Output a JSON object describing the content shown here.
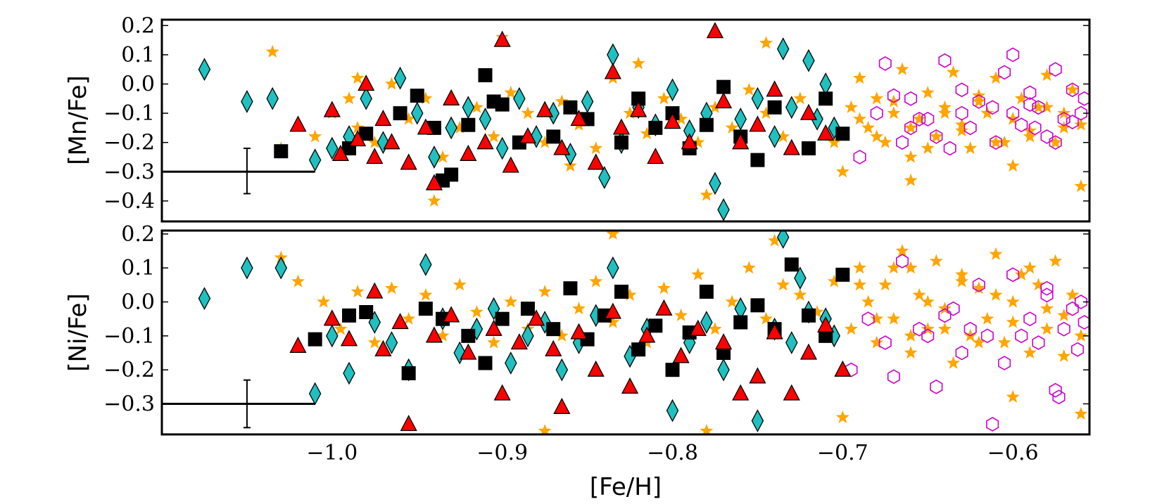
{
  "chart_data": [
    {
      "type": "scatter",
      "panel": "top",
      "title": "",
      "xlabel": "",
      "ylabel": "[Mn/Fe]",
      "xlim": [
        -1.1,
        -0.555
      ],
      "ylim": [
        -0.47,
        0.22
      ],
      "yticks": [
        0.2,
        0.1,
        0.0,
        -0.1,
        -0.2,
        -0.3,
        -0.4
      ],
      "ytick_labels": [
        "0.2",
        "0.1",
        "0.0",
        "−0.1",
        "−0.2",
        "−0.3",
        "−0.4"
      ],
      "error_bar": {
        "x": -1.05,
        "y": -0.3,
        "x_range": [
          -1.1,
          -1.01
        ],
        "y_range": [
          -0.375,
          -0.22
        ]
      },
      "series": [
        {
          "name": "orange-stars",
          "marker": "star",
          "color": "#FFA500",
          "x": [
            -1.03,
            -1.01,
            -1.0,
            -0.99,
            -0.985,
            -0.975,
            -0.965,
            -0.955,
            -0.945,
            -0.935,
            -0.925,
            -0.915,
            -0.905,
            -0.895,
            -0.885,
            -0.875,
            -0.865,
            -0.855,
            -0.845,
            -0.835,
            -0.825,
            -0.815,
            -0.805,
            -0.795,
            -0.785,
            -0.775,
            -0.765,
            -0.755,
            -0.745,
            -0.735,
            -0.725,
            -0.715,
            -0.705,
            -0.695,
            -0.69,
            -0.685,
            -0.68,
            -0.675,
            -0.67,
            -0.665,
            -0.66,
            -0.655,
            -0.65,
            -0.645,
            -0.64,
            -0.635,
            -0.63,
            -0.625,
            -0.62,
            -0.615,
            -0.61,
            -0.605,
            -0.6,
            -0.595,
            -0.59,
            -0.585,
            -0.58,
            -0.575,
            -0.57,
            -0.565,
            -0.56,
            -0.69,
            -0.68,
            -0.67,
            -0.66,
            -0.65,
            -0.64,
            -0.63,
            -0.62,
            -0.61,
            -0.6,
            -0.59,
            -0.58,
            -0.57,
            -1.035,
            -0.985,
            -0.94,
            -0.9,
            -0.86,
            -0.82,
            -0.78,
            -0.745,
            -0.7,
            -0.66,
            -0.6,
            -0.56
          ],
          "y": [
            -0.22,
            -0.18,
            -0.1,
            -0.05,
            -0.15,
            -0.2,
            0.0,
            -0.12,
            -0.05,
            -0.25,
            -0.15,
            -0.08,
            -0.18,
            -0.03,
            -0.1,
            -0.2,
            -0.06,
            -0.14,
            -0.22,
            0.02,
            -0.1,
            -0.17,
            -0.05,
            -0.12,
            -0.2,
            -0.08,
            -0.15,
            -0.02,
            -0.1,
            -0.18,
            -0.05,
            -0.12,
            -0.2,
            -0.08,
            0.02,
            -0.15,
            -0.05,
            -0.2,
            -0.1,
            0.05,
            -0.25,
            -0.12,
            -0.03,
            -0.18,
            -0.08,
            0.04,
            -0.14,
            -0.22,
            -0.06,
            -0.1,
            0.02,
            -0.2,
            -0.12,
            -0.05,
            -0.16,
            -0.08,
            0.03,
            -0.2,
            -0.1,
            -0.02,
            -0.14,
            -0.12,
            -0.18,
            -0.06,
            -0.15,
            -0.22,
            -0.1,
            -0.16,
            -0.04,
            -0.2,
            -0.12,
            -0.18,
            -0.08,
            -0.15,
            0.11,
            0.02,
            -0.4,
            0.16,
            -0.28,
            0.07,
            -0.38,
            0.14,
            -0.3,
            -0.33,
            -0.28,
            -0.35
          ]
        },
        {
          "name": "magenta-hexagons",
          "marker": "hexagon-open",
          "color": "#CC00CC",
          "x": [
            -0.69,
            -0.68,
            -0.675,
            -0.665,
            -0.66,
            -0.65,
            -0.645,
            -0.64,
            -0.63,
            -0.625,
            -0.62,
            -0.61,
            -0.605,
            -0.6,
            -0.595,
            -0.59,
            -0.585,
            -0.58,
            -0.575,
            -0.57,
            -0.565,
            -0.56,
            -0.558,
            -0.587,
            -0.612,
            -0.637,
            -0.655,
            -0.67,
            -0.63,
            -0.6,
            -0.575,
            -0.66,
            -0.59,
            -0.565
          ],
          "y": [
            -0.25,
            -0.1,
            0.07,
            -0.2,
            -0.05,
            -0.12,
            -0.18,
            0.08,
            -0.02,
            -0.15,
            -0.06,
            -0.2,
            0.04,
            -0.1,
            -0.14,
            -0.03,
            -0.08,
            -0.18,
            0.05,
            -0.12,
            -0.02,
            -0.1,
            -0.05,
            -0.15,
            -0.08,
            -0.22,
            -0.12,
            -0.04,
            -0.1,
            0.1,
            -0.2,
            -0.15,
            -0.07,
            -0.13
          ]
        },
        {
          "name": "cyan-diamonds",
          "marker": "diamond",
          "color": "#20C0C0",
          "x": [
            -1.075,
            -1.05,
            -1.035,
            -1.01,
            -1.0,
            -0.99,
            -0.98,
            -0.97,
            -0.96,
            -0.95,
            -0.94,
            -0.93,
            -0.92,
            -0.91,
            -0.9,
            -0.89,
            -0.88,
            -0.87,
            -0.86,
            -0.85,
            -0.84,
            -0.835,
            -0.83,
            -0.82,
            -0.81,
            -0.8,
            -0.79,
            -0.78,
            -0.775,
            -0.77,
            -0.76,
            -0.75,
            -0.74,
            -0.735,
            -0.73,
            -0.72,
            -0.715,
            -0.71,
            -0.705
          ],
          "y": [
            0.05,
            -0.06,
            -0.05,
            -0.26,
            -0.22,
            -0.18,
            -0.05,
            -0.2,
            0.02,
            -0.1,
            -0.25,
            -0.15,
            -0.08,
            -0.12,
            -0.22,
            -0.05,
            -0.18,
            -0.1,
            -0.24,
            -0.06,
            -0.32,
            0.1,
            -0.2,
            -0.08,
            -0.14,
            -0.02,
            -0.16,
            -0.1,
            -0.34,
            -0.43,
            -0.12,
            -0.05,
            -0.18,
            0.12,
            -0.08,
            0.08,
            -0.12,
            0.0,
            -0.15
          ]
        },
        {
          "name": "black-squares",
          "marker": "square",
          "color": "#000000",
          "x": [
            -1.03,
            -0.99,
            -0.98,
            -0.96,
            -0.95,
            -0.94,
            -0.935,
            -0.93,
            -0.92,
            -0.91,
            -0.905,
            -0.9,
            -0.89,
            -0.87,
            -0.86,
            -0.85,
            -0.83,
            -0.82,
            -0.81,
            -0.8,
            -0.79,
            -0.78,
            -0.77,
            -0.76,
            -0.75,
            -0.74,
            -0.72,
            -0.71,
            -0.7
          ],
          "y": [
            -0.23,
            -0.22,
            -0.17,
            -0.1,
            -0.04,
            -0.15,
            -0.33,
            -0.31,
            -0.14,
            0.03,
            -0.06,
            -0.07,
            -0.2,
            -0.18,
            -0.08,
            -0.12,
            -0.2,
            -0.05,
            -0.15,
            -0.1,
            -0.22,
            -0.14,
            -0.01,
            -0.18,
            -0.26,
            -0.08,
            -0.22,
            -0.05,
            -0.17
          ]
        },
        {
          "name": "red-triangles",
          "marker": "triangle",
          "color": "#FF0000",
          "x": [
            -1.02,
            -1.0,
            -0.995,
            -0.985,
            -0.98,
            -0.975,
            -0.97,
            -0.965,
            -0.955,
            -0.945,
            -0.94,
            -0.93,
            -0.92,
            -0.91,
            -0.9,
            -0.895,
            -0.885,
            -0.875,
            -0.865,
            -0.855,
            -0.845,
            -0.835,
            -0.83,
            -0.82,
            -0.81,
            -0.8,
            -0.79,
            -0.775,
            -0.77,
            -0.76,
            -0.75,
            -0.74,
            -0.73,
            -0.72,
            -0.71
          ],
          "y": [
            -0.14,
            -0.09,
            -0.24,
            -0.19,
            0.0,
            -0.25,
            -0.12,
            -0.2,
            -0.27,
            -0.15,
            -0.34,
            -0.05,
            -0.24,
            -0.2,
            0.15,
            -0.28,
            -0.18,
            -0.09,
            -0.22,
            -0.12,
            -0.27,
            0.04,
            -0.15,
            -0.09,
            -0.25,
            -0.13,
            -0.2,
            0.18,
            -0.06,
            -0.2,
            -0.14,
            -0.02,
            -0.22,
            -0.1,
            -0.17
          ]
        }
      ]
    },
    {
      "type": "scatter",
      "panel": "bottom",
      "title": "",
      "xlabel": "[Fe/H]",
      "ylabel": "[Ni/Fe]",
      "xlim": [
        -1.1,
        -0.555
      ],
      "ylim": [
        -0.39,
        0.21
      ],
      "xticks": [
        -1.0,
        -0.9,
        -0.8,
        -0.7,
        -0.6
      ],
      "xtick_labels": [
        "−1.0",
        "−0.9",
        "−0.8",
        "−0.7",
        "−0.6"
      ],
      "yticks": [
        0.2,
        0.1,
        0.0,
        -0.1,
        -0.2,
        -0.3
      ],
      "ytick_labels": [
        "0.2",
        "0.1",
        "0.0",
        "−0.1",
        "−0.2",
        "−0.3"
      ],
      "error_bar": {
        "x": -1.05,
        "y": -0.3,
        "x_range": [
          -1.1,
          -1.01
        ],
        "y_range": [
          -0.37,
          -0.23
        ]
      },
      "series": [
        {
          "name": "orange-stars",
          "marker": "star",
          "color": "#FFA500",
          "x": [
            -1.03,
            -1.02,
            -1.005,
            -0.995,
            -0.985,
            -0.975,
            -0.965,
            -0.955,
            -0.945,
            -0.935,
            -0.925,
            -0.915,
            -0.905,
            -0.895,
            -0.885,
            -0.875,
            -0.865,
            -0.855,
            -0.845,
            -0.835,
            -0.825,
            -0.815,
            -0.805,
            -0.795,
            -0.785,
            -0.775,
            -0.765,
            -0.755,
            -0.745,
            -0.735,
            -0.725,
            -0.715,
            -0.705,
            -0.695,
            -0.69,
            -0.685,
            -0.68,
            -0.675,
            -0.67,
            -0.665,
            -0.66,
            -0.655,
            -0.65,
            -0.645,
            -0.64,
            -0.635,
            -0.63,
            -0.625,
            -0.62,
            -0.615,
            -0.61,
            -0.605,
            -0.6,
            -0.595,
            -0.59,
            -0.585,
            -0.58,
            -0.575,
            -0.57,
            -0.565,
            -0.56,
            -0.69,
            -0.68,
            -0.67,
            -0.66,
            -0.65,
            -0.64,
            -0.63,
            -0.62,
            -0.61,
            -0.6,
            -0.59,
            -0.58,
            -0.57,
            -0.875,
            -0.835,
            -0.78,
            -0.74,
            -0.7,
            -0.66,
            -0.6,
            -0.56
          ],
          "y": [
            0.13,
            0.06,
            0.0,
            -0.08,
            0.03,
            -0.12,
            0.04,
            -0.05,
            0.02,
            -0.1,
            0.05,
            -0.03,
            -0.12,
            0.0,
            -0.08,
            0.03,
            -0.1,
            -0.02,
            0.06,
            -0.06,
            0.02,
            -0.12,
            0.04,
            -0.04,
            0.08,
            -0.08,
            0.0,
            0.1,
            -0.05,
            0.05,
            0.02,
            -0.03,
            0.06,
            -0.08,
            0.1,
            0.0,
            -0.12,
            0.05,
            -0.05,
            0.15,
            -0.15,
            0.02,
            -0.08,
            0.12,
            -0.02,
            -0.18,
            0.08,
            -0.1,
            0.04,
            -0.05,
            0.14,
            -0.12,
            0.0,
            0.08,
            -0.15,
            0.05,
            -0.08,
            0.12,
            -0.04,
            0.02,
            -0.1,
            0.05,
            -0.05,
            0.1,
            -0.1,
            0.0,
            -0.08,
            0.06,
            -0.12,
            0.02,
            -0.06,
            0.1,
            -0.02,
            -0.16,
            -0.38,
            0.2,
            -0.38,
            0.18,
            -0.34,
            0.1,
            -0.28,
            -0.33
          ]
        },
        {
          "name": "magenta-hexagons",
          "marker": "hexagon-open",
          "color": "#CC00CC",
          "x": [
            -0.695,
            -0.685,
            -0.675,
            -0.665,
            -0.655,
            -0.645,
            -0.635,
            -0.63,
            -0.62,
            -0.615,
            -0.605,
            -0.6,
            -0.59,
            -0.585,
            -0.58,
            -0.575,
            -0.57,
            -0.565,
            -0.56,
            -0.558,
            -0.67,
            -0.64,
            -0.612,
            -0.595,
            -0.573,
            -0.562,
            -0.65,
            -0.625,
            -0.58
          ],
          "y": [
            -0.2,
            -0.05,
            -0.12,
            0.12,
            -0.08,
            -0.25,
            -0.02,
            -0.15,
            0.05,
            -0.1,
            -0.18,
            0.08,
            -0.05,
            -0.12,
            0.02,
            -0.26,
            -0.08,
            -0.02,
            0.0,
            -0.06,
            -0.22,
            -0.04,
            -0.36,
            -0.1,
            -0.28,
            -0.14,
            -0.1,
            -0.08,
            0.04
          ]
        },
        {
          "name": "cyan-diamonds",
          "marker": "diamond",
          "color": "#20C0C0",
          "x": [
            -1.075,
            -1.05,
            -1.03,
            -1.01,
            -1.0,
            -0.99,
            -0.975,
            -0.965,
            -0.955,
            -0.945,
            -0.935,
            -0.925,
            -0.915,
            -0.905,
            -0.895,
            -0.885,
            -0.875,
            -0.865,
            -0.855,
            -0.845,
            -0.835,
            -0.825,
            -0.815,
            -0.8,
            -0.79,
            -0.78,
            -0.77,
            -0.76,
            -0.75,
            -0.74,
            -0.735,
            -0.73,
            -0.725,
            -0.72,
            -0.71,
            -0.705
          ],
          "y": [
            0.01,
            0.1,
            0.1,
            -0.27,
            -0.1,
            -0.21,
            -0.06,
            -0.12,
            -0.2,
            0.11,
            -0.05,
            -0.15,
            -0.08,
            -0.02,
            -0.18,
            -0.1,
            -0.06,
            -0.2,
            -0.12,
            -0.04,
            0.1,
            -0.16,
            -0.08,
            -0.32,
            -0.12,
            -0.06,
            -0.2,
            -0.02,
            -0.35,
            -0.08,
            0.19,
            -0.12,
            0.07,
            -0.03,
            -0.05,
            -0.1
          ]
        },
        {
          "name": "black-squares",
          "marker": "square",
          "color": "#000000",
          "x": [
            -1.01,
            -0.99,
            -0.98,
            -0.955,
            -0.945,
            -0.935,
            -0.92,
            -0.91,
            -0.9,
            -0.885,
            -0.87,
            -0.86,
            -0.85,
            -0.84,
            -0.83,
            -0.82,
            -0.81,
            -0.8,
            -0.79,
            -0.78,
            -0.77,
            -0.76,
            -0.75,
            -0.74,
            -0.73,
            -0.72,
            -0.71,
            -0.7
          ],
          "y": [
            -0.11,
            -0.04,
            -0.03,
            -0.21,
            -0.02,
            -0.05,
            -0.1,
            -0.18,
            -0.05,
            -0.02,
            -0.08,
            0.04,
            -0.11,
            -0.04,
            0.03,
            -0.14,
            -0.07,
            -0.2,
            -0.09,
            0.03,
            -0.15,
            -0.06,
            -0.01,
            -0.08,
            0.11,
            -0.04,
            -0.1,
            0.08
          ]
        },
        {
          "name": "red-triangles",
          "marker": "triangle",
          "color": "#FF0000",
          "x": [
            -1.02,
            -1.0,
            -0.99,
            -0.975,
            -0.97,
            -0.96,
            -0.955,
            -0.94,
            -0.93,
            -0.92,
            -0.905,
            -0.9,
            -0.89,
            -0.88,
            -0.87,
            -0.865,
            -0.855,
            -0.845,
            -0.835,
            -0.825,
            -0.815,
            -0.805,
            -0.795,
            -0.785,
            -0.77,
            -0.76,
            -0.75,
            -0.74,
            -0.73,
            -0.72,
            -0.71,
            -0.7
          ],
          "y": [
            -0.13,
            -0.05,
            -0.11,
            0.03,
            -0.14,
            -0.06,
            -0.36,
            -0.1,
            -0.04,
            -0.15,
            -0.08,
            -0.27,
            -0.12,
            -0.05,
            -0.14,
            -0.31,
            -0.09,
            -0.2,
            -0.03,
            -0.25,
            -0.1,
            -0.02,
            -0.16,
            -0.08,
            -0.12,
            -0.27,
            -0.22,
            -0.09,
            -0.27,
            -0.15,
            -0.07,
            -0.2
          ]
        }
      ]
    }
  ]
}
